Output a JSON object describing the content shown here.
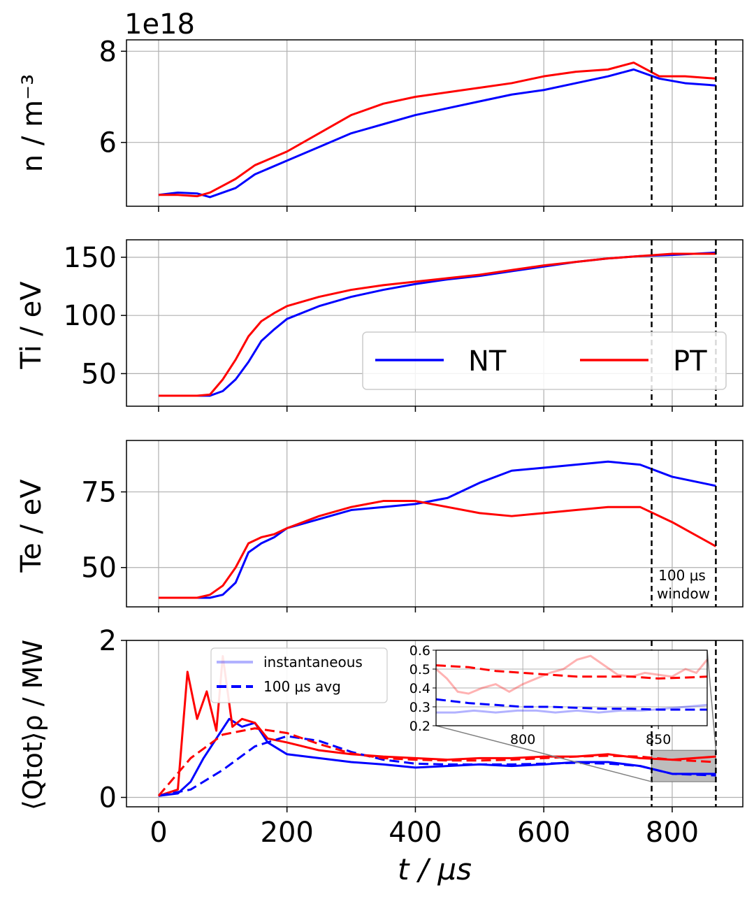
{
  "figure": {
    "xlabel": "t / μs",
    "colors": {
      "NT": "#0000ff",
      "PT": "#ff0000",
      "grid": "#b0b0b0",
      "inset_box": "#bdbdbd"
    },
    "window_label_line1": "100 μs",
    "window_label_line2": "window",
    "window_start": 768,
    "window_end": 868
  },
  "chart_data": [
    {
      "type": "line",
      "panel": "density",
      "ylabel": "n / m⁻³",
      "offset_text": "1e18",
      "xlim": [
        -50,
        910
      ],
      "ylim": [
        4.6,
        8.25
      ],
      "yticks": [
        6,
        8
      ],
      "ytick_labels": [
        "6",
        "8"
      ],
      "grid": true,
      "series": [
        {
          "name": "NT",
          "x": [
            0,
            30,
            60,
            80,
            100,
            120,
            150,
            200,
            250,
            300,
            350,
            400,
            450,
            500,
            550,
            600,
            650,
            700,
            740,
            780,
            820,
            868
          ],
          "y": [
            4.85,
            4.9,
            4.88,
            4.8,
            4.9,
            5.0,
            5.3,
            5.6,
            5.9,
            6.2,
            6.4,
            6.6,
            6.75,
            6.9,
            7.05,
            7.15,
            7.3,
            7.45,
            7.6,
            7.4,
            7.3,
            7.25
          ]
        },
        {
          "name": "PT",
          "x": [
            0,
            30,
            60,
            80,
            100,
            120,
            150,
            200,
            250,
            300,
            350,
            400,
            450,
            500,
            550,
            600,
            650,
            700,
            740,
            780,
            820,
            868
          ],
          "y": [
            4.85,
            4.85,
            4.82,
            4.9,
            5.05,
            5.2,
            5.5,
            5.8,
            6.2,
            6.6,
            6.85,
            7.0,
            7.1,
            7.2,
            7.3,
            7.45,
            7.55,
            7.6,
            7.75,
            7.45,
            7.45,
            7.4
          ]
        }
      ]
    },
    {
      "type": "line",
      "panel": "ion_temperature",
      "ylabel": "Ti / eV",
      "xlim": [
        -50,
        910
      ],
      "ylim": [
        22,
        165
      ],
      "yticks": [
        50,
        100,
        150
      ],
      "ytick_labels": [
        "50",
        "100",
        "150"
      ],
      "grid": true,
      "legend": {
        "entries": [
          "NT",
          "PT"
        ],
        "location": "center-right"
      },
      "series": [
        {
          "name": "NT",
          "x": [
            0,
            60,
            80,
            100,
            120,
            140,
            160,
            180,
            200,
            250,
            300,
            350,
            400,
            450,
            500,
            550,
            600,
            650,
            700,
            750,
            800,
            868
          ],
          "y": [
            31,
            31,
            31,
            35,
            45,
            60,
            78,
            88,
            97,
            108,
            116,
            122,
            127,
            131,
            134,
            138,
            142,
            146,
            149,
            151,
            152,
            154
          ]
        },
        {
          "name": "PT",
          "x": [
            0,
            60,
            80,
            100,
            120,
            140,
            160,
            180,
            200,
            250,
            300,
            350,
            400,
            450,
            500,
            550,
            600,
            650,
            700,
            750,
            800,
            868
          ],
          "y": [
            31,
            31,
            32,
            45,
            62,
            82,
            95,
            102,
            108,
            116,
            122,
            126,
            129,
            132,
            135,
            139,
            143,
            146,
            149,
            151,
            153,
            153
          ]
        }
      ]
    },
    {
      "type": "line",
      "panel": "electron_temperature",
      "ylabel": "Te / eV",
      "xlim": [
        -50,
        910
      ],
      "ylim": [
        37,
        92
      ],
      "yticks": [
        50,
        75
      ],
      "ytick_labels": [
        "50",
        "75"
      ],
      "grid": true,
      "annotation": "100 μs window",
      "series": [
        {
          "name": "NT",
          "x": [
            0,
            60,
            80,
            100,
            120,
            140,
            160,
            180,
            200,
            250,
            300,
            350,
            400,
            450,
            500,
            550,
            600,
            650,
            700,
            750,
            800,
            868
          ],
          "y": [
            40,
            40,
            40,
            41,
            45,
            55,
            58,
            60,
            63,
            66,
            69,
            70,
            71,
            73,
            78,
            82,
            83,
            84,
            85,
            84,
            80,
            77
          ]
        },
        {
          "name": "PT",
          "x": [
            0,
            60,
            80,
            100,
            120,
            140,
            160,
            180,
            200,
            250,
            300,
            350,
            400,
            450,
            500,
            550,
            600,
            650,
            700,
            750,
            800,
            868
          ],
          "y": [
            40,
            40,
            41,
            44,
            50,
            58,
            60,
            61,
            63,
            67,
            70,
            72,
            72,
            70,
            68,
            67,
            68,
            69,
            70,
            70,
            65,
            57
          ]
        }
      ]
    },
    {
      "type": "line",
      "panel": "heat_flux",
      "ylabel": "⟨Qtot⟩ρ / MW",
      "xlabel": "t / μs",
      "xlim": [
        -50,
        910
      ],
      "ylim": [
        -0.12,
        2.0
      ],
      "xticks": [
        0,
        200,
        400,
        600,
        800
      ],
      "xtick_labels": [
        "0",
        "200",
        "400",
        "600",
        "800"
      ],
      "yticks": [
        0,
        2
      ],
      "ytick_labels": [
        "0",
        "2"
      ],
      "grid": true,
      "legend": {
        "entries": [
          "instantaneous",
          "100 μs avg"
        ],
        "location": "upper-center-left"
      },
      "series": [
        {
          "name": "NT instantaneous",
          "style": "solid",
          "x": [
            0,
            30,
            50,
            70,
            90,
            110,
            130,
            150,
            170,
            200,
            250,
            300,
            350,
            400,
            450,
            500,
            550,
            600,
            650,
            700,
            750,
            800,
            868
          ],
          "y": [
            0.02,
            0.05,
            0.2,
            0.5,
            0.75,
            1.0,
            0.9,
            0.95,
            0.7,
            0.55,
            0.5,
            0.45,
            0.42,
            0.38,
            0.4,
            0.42,
            0.4,
            0.42,
            0.45,
            0.45,
            0.4,
            0.3,
            0.3
          ]
        },
        {
          "name": "PT instantaneous",
          "style": "solid",
          "x": [
            0,
            30,
            45,
            60,
            75,
            90,
            100,
            115,
            130,
            150,
            170,
            200,
            250,
            300,
            350,
            400,
            450,
            500,
            550,
            600,
            650,
            700,
            750,
            800,
            868
          ],
          "y": [
            0.02,
            0.1,
            1.6,
            1.0,
            1.35,
            0.85,
            1.8,
            0.9,
            1.0,
            0.95,
            0.75,
            0.7,
            0.6,
            0.55,
            0.52,
            0.5,
            0.48,
            0.5,
            0.5,
            0.52,
            0.52,
            0.55,
            0.5,
            0.48,
            0.52
          ]
        },
        {
          "name": "NT 100 μs avg",
          "style": "dashed",
          "x": [
            0,
            50,
            100,
            150,
            200,
            250,
            300,
            350,
            400,
            450,
            500,
            550,
            600,
            650,
            700,
            750,
            800,
            868
          ],
          "y": [
            0.02,
            0.1,
            0.35,
            0.65,
            0.78,
            0.72,
            0.58,
            0.48,
            0.43,
            0.42,
            0.42,
            0.42,
            0.43,
            0.44,
            0.43,
            0.4,
            0.3,
            0.28
          ]
        },
        {
          "name": "PT 100 μs avg",
          "style": "dashed",
          "x": [
            0,
            50,
            100,
            150,
            200,
            250,
            300,
            350,
            400,
            450,
            500,
            550,
            600,
            650,
            700,
            750,
            800,
            868
          ],
          "y": [
            0.02,
            0.5,
            0.8,
            0.88,
            0.82,
            0.68,
            0.56,
            0.5,
            0.48,
            0.47,
            0.47,
            0.48,
            0.5,
            0.52,
            0.53,
            0.52,
            0.48,
            0.45
          ]
        }
      ]
    },
    {
      "type": "line",
      "panel": "heat_flux_inset",
      "xlim": [
        768,
        868
      ],
      "ylim": [
        0.2,
        0.6
      ],
      "xticks": [
        800,
        850
      ],
      "xtick_labels": [
        "800",
        "850"
      ],
      "yticks": [
        0.2,
        0.3,
        0.4,
        0.5,
        0.6
      ],
      "ytick_labels": [
        "0.2",
        "0.3",
        "0.4",
        "0.5",
        "0.6"
      ],
      "grid": true,
      "series": [
        {
          "name": "PT instantaneous",
          "x": [
            768,
            772,
            776,
            780,
            785,
            790,
            795,
            800,
            805,
            810,
            815,
            820,
            825,
            830,
            835,
            840,
            845,
            850,
            855,
            860,
            864,
            868
          ],
          "y": [
            0.5,
            0.45,
            0.38,
            0.37,
            0.4,
            0.42,
            0.38,
            0.42,
            0.45,
            0.48,
            0.5,
            0.55,
            0.57,
            0.52,
            0.47,
            0.46,
            0.48,
            0.47,
            0.46,
            0.5,
            0.48,
            0.55
          ]
        },
        {
          "name": "NT instantaneous",
          "x": [
            768,
            775,
            782,
            790,
            798,
            805,
            812,
            820,
            828,
            836,
            844,
            852,
            860,
            868
          ],
          "y": [
            0.27,
            0.27,
            0.28,
            0.27,
            0.28,
            0.28,
            0.27,
            0.28,
            0.27,
            0.28,
            0.28,
            0.29,
            0.3,
            0.31
          ]
        },
        {
          "name": "PT 100 μs avg",
          "x": [
            768,
            780,
            790,
            800,
            810,
            820,
            830,
            840,
            850,
            860,
            868
          ],
          "y": [
            0.52,
            0.51,
            0.49,
            0.48,
            0.47,
            0.46,
            0.46,
            0.46,
            0.45,
            0.455,
            0.46
          ]
        },
        {
          "name": "NT 100 μs avg",
          "x": [
            768,
            780,
            790,
            800,
            810,
            820,
            830,
            840,
            850,
            860,
            868
          ],
          "y": [
            0.34,
            0.32,
            0.31,
            0.3,
            0.3,
            0.295,
            0.29,
            0.29,
            0.285,
            0.285,
            0.285
          ]
        }
      ]
    }
  ]
}
